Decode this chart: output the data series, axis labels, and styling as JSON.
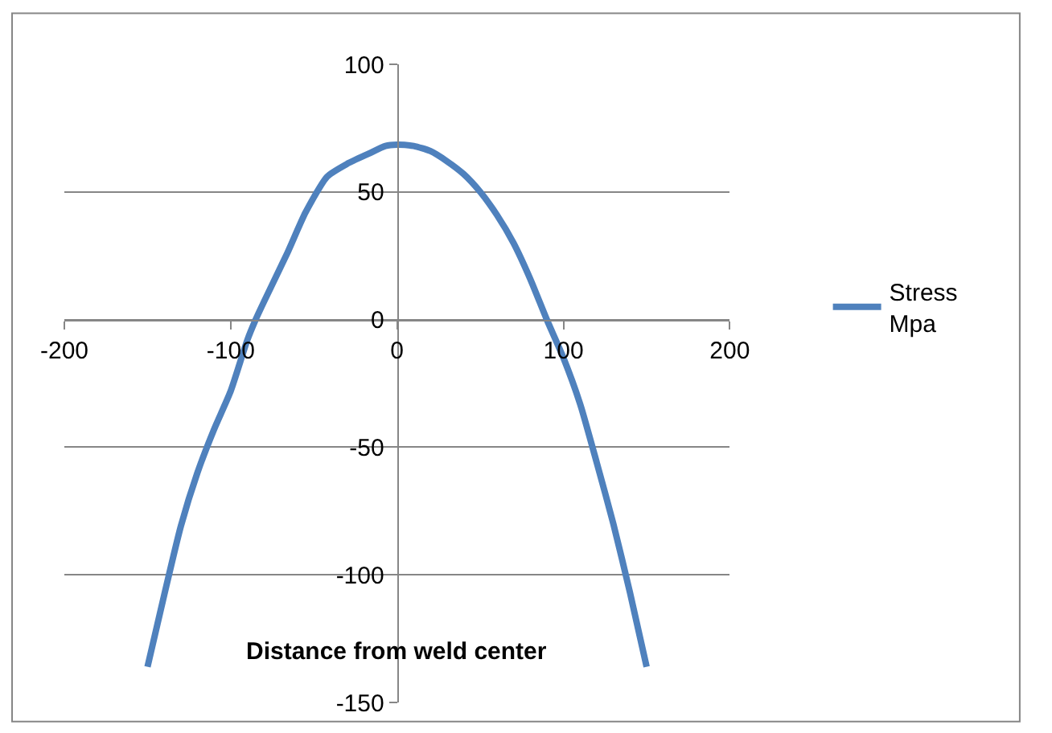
{
  "chart_data": {
    "type": "line",
    "xlabel": "Distance from weld center",
    "x": [
      -150,
      -140,
      -130,
      -120,
      -110,
      -100,
      -90,
      -85,
      -80,
      -66,
      -55,
      -42,
      -30,
      -17,
      -7,
      0,
      10,
      20,
      30,
      40,
      50,
      60,
      70,
      80,
      90,
      100,
      110,
      120,
      130,
      140,
      150
    ],
    "series": [
      {
        "name": "Stress Mpa",
        "color": "#4f81bd",
        "values": [
          -136,
          -108,
          -81,
          -60,
          -43,
          -28,
          -8,
          0,
          7,
          26,
          42,
          56,
          61,
          65,
          68,
          68.5,
          68,
          66,
          62,
          57,
          50,
          41,
          30,
          16,
          0,
          -15,
          -33,
          -56,
          -80,
          -107,
          -136
        ]
      }
    ],
    "xlim": [
      -200,
      200
    ],
    "ylim": [
      -150,
      100
    ],
    "xticks": [
      -200,
      -100,
      0,
      100,
      200
    ],
    "yticks": [
      -150,
      -100,
      -50,
      0,
      50,
      100
    ],
    "grid": "y",
    "legend": "right",
    "marker": "none",
    "line_style": "solid"
  }
}
